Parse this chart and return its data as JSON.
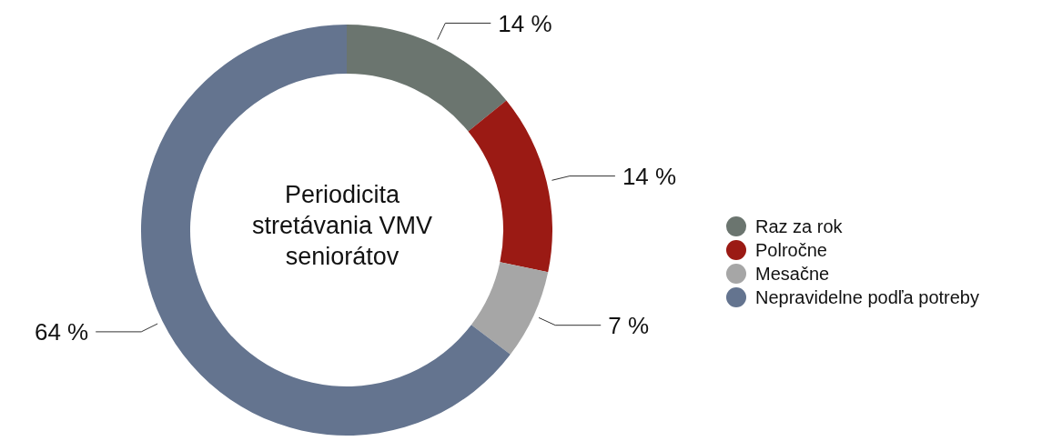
{
  "chart_data": {
    "type": "donut",
    "title": "Periodicita stretávania VMV seniorátov",
    "categories": [
      "Raz za rok",
      "Polročne",
      "Mesačne",
      "Nepravidelne podľa potreby"
    ],
    "values": [
      14,
      14,
      7,
      64
    ],
    "colors": [
      "#6b756f",
      "#9b1a14",
      "#a6a6a6",
      "#64748f"
    ],
    "value_labels": [
      "14 %",
      "14 %",
      "7 %",
      "64 %"
    ],
    "legend": "right"
  }
}
